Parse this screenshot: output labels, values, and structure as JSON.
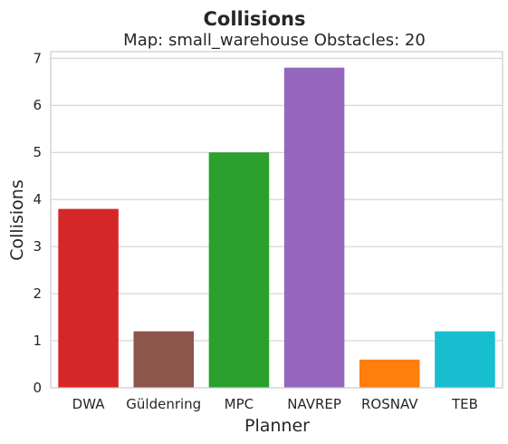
{
  "chart_data": {
    "type": "bar",
    "title": "Collisions",
    "subtitle": "Map: small_warehouse Obstacles: 20",
    "xlabel": "Planner",
    "ylabel": "Collisions",
    "categories": [
      "DWA",
      "Güldenring",
      "MPC",
      "NAVREP",
      "ROSNAV",
      "TEB"
    ],
    "values": [
      3.8,
      1.2,
      5.0,
      6.8,
      0.6,
      1.2
    ],
    "colors": [
      "#d62728",
      "#8c564b",
      "#2ca02c",
      "#9467bd",
      "#ff7f0e",
      "#17becf"
    ],
    "ylim": [
      0,
      7.14
    ],
    "yticks": [
      0,
      1,
      2,
      3,
      4,
      5,
      6,
      7
    ],
    "grid": "horizontal",
    "legend": "none"
  }
}
